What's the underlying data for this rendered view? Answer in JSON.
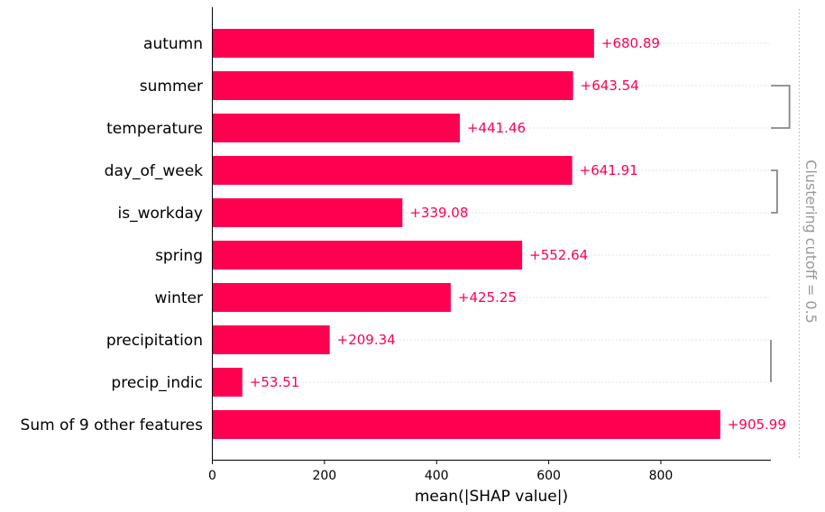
{
  "chart_data": {
    "type": "bar",
    "orientation": "horizontal",
    "categories": [
      "autumn",
      "summer",
      "temperature",
      "day_of_week",
      "is_workday",
      "spring",
      "winter",
      "precipitation",
      "precip_indic",
      "Sum of 9 other features"
    ],
    "values": [
      680.89,
      643.54,
      441.46,
      641.91,
      339.08,
      552.64,
      425.25,
      209.34,
      53.51,
      905.99
    ],
    "value_labels": [
      "+680.89",
      "+643.54",
      "+441.46",
      "+641.91",
      "+339.08",
      "+552.64",
      "+425.25",
      "+209.34",
      "+53.51",
      "+905.99"
    ],
    "xlabel": "mean(|SHAP value|)",
    "xticks": [
      "0",
      "200",
      "400",
      "600",
      "800"
    ],
    "xlim": [
      0,
      1000
    ],
    "bar_color": "#ff0051",
    "cutoff_label": "Clustering cutoff = 0.5",
    "clustering": [
      {
        "from": 1,
        "to": 2,
        "level": 0.75
      },
      {
        "from": 3,
        "to": 4,
        "level": 0.25
      },
      {
        "from": 7,
        "to": 8,
        "level": 0.0
      }
    ]
  }
}
